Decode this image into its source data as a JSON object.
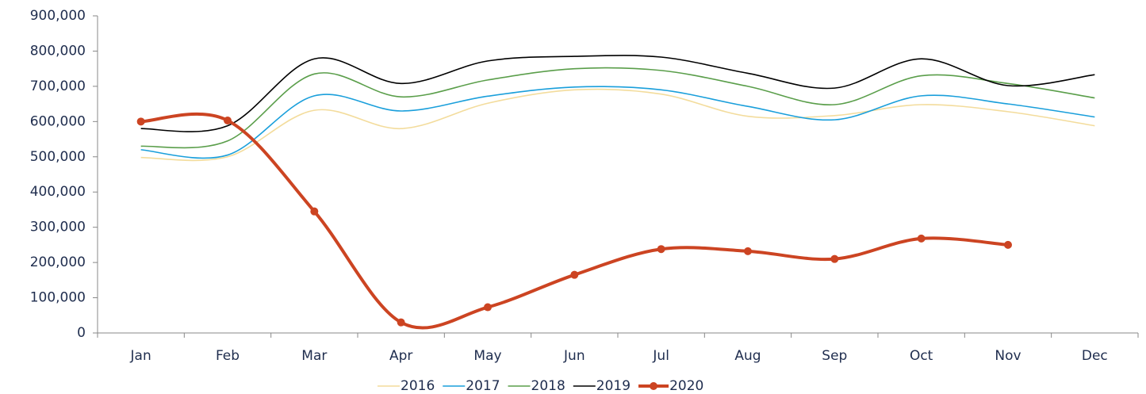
{
  "chart_data": {
    "type": "line",
    "smooth": true,
    "grid": false,
    "legend": "bottom",
    "categories": [
      "Jan",
      "Feb",
      "Mar",
      "Apr",
      "May",
      "Jun",
      "Jul",
      "Aug",
      "Sep",
      "Oct",
      "Nov",
      "Dec"
    ],
    "ylim": [
      0,
      900000
    ],
    "yticks": [
      0,
      {
        "value": 100000,
        "label": "100,000"
      },
      {
        "value": 200000,
        "label": "200,000"
      },
      {
        "value": 300000,
        "label": "300,000"
      },
      {
        "value": 400000,
        "label": "400,000"
      },
      {
        "value": 500000,
        "label": "500,000"
      },
      {
        "value": 600000,
        "label": "600,000"
      },
      {
        "value": 700000,
        "label": "700,000"
      },
      {
        "value": 800000,
        "label": "800,000"
      },
      {
        "value": 900000,
        "label": "900,000"
      }
    ],
    "series": [
      {
        "name": "2016",
        "color": "#f3dc9c",
        "width": 1.6,
        "markers": false,
        "values": [
          498000,
          500000,
          632000,
          580000,
          652000,
          690000,
          678000,
          615000,
          617000,
          648000,
          628000,
          588000
        ]
      },
      {
        "name": "2017",
        "color": "#1a9fdb",
        "width": 1.6,
        "markers": false,
        "values": [
          520000,
          505000,
          673000,
          630000,
          672000,
          698000,
          690000,
          643000,
          605000,
          673000,
          650000,
          613000
        ]
      },
      {
        "name": "2018",
        "color": "#5a9e4a",
        "width": 1.6,
        "markers": false,
        "values": [
          530000,
          545000,
          735000,
          670000,
          718000,
          750000,
          745000,
          700000,
          648000,
          730000,
          708000,
          667000
        ]
      },
      {
        "name": "2019",
        "color": "#000000",
        "width": 1.6,
        "markers": false,
        "values": [
          580000,
          588000,
          778000,
          708000,
          772000,
          785000,
          783000,
          737000,
          695000,
          778000,
          702000,
          733000
        ]
      },
      {
        "name": "2020",
        "color": "#cc4422",
        "width": 4,
        "markers": true,
        "values": [
          600000,
          603000,
          345000,
          30000,
          73000,
          165000,
          238000,
          232000,
          210000,
          268000,
          250000,
          null
        ]
      }
    ]
  }
}
